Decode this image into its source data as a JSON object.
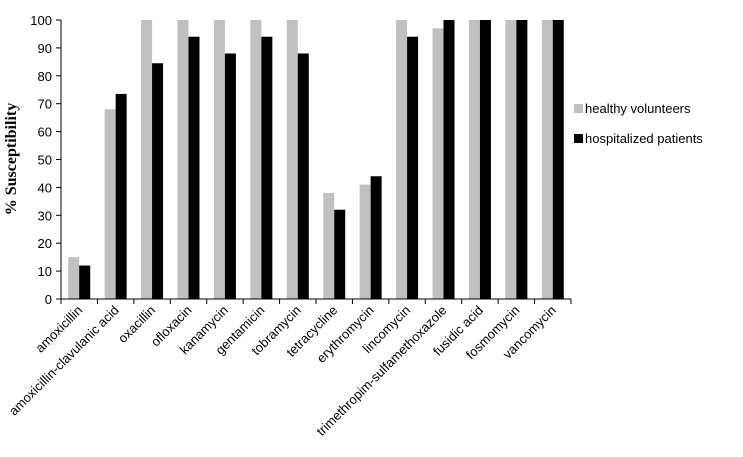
{
  "chart_data": {
    "type": "bar",
    "ylabel": "% Susceptibility",
    "xlabel": "",
    "title": "",
    "ylim": [
      0,
      100
    ],
    "yticks": [
      0,
      10,
      20,
      30,
      40,
      50,
      60,
      70,
      80,
      90,
      100
    ],
    "grid": false,
    "legend_position": "right",
    "categories": [
      "amoxicillin",
      "amoxicillin-clavulanic acid",
      "oxacillin",
      "ofloxacin",
      "kanamycin",
      "gentamicin",
      "tobramycin",
      "tetracycline",
      "erythromycin",
      "lincomycin",
      "trimethropim-sulfamethoxazole",
      "fusidic acid",
      "fosmomycin",
      "vancomycin"
    ],
    "series": [
      {
        "name": "healthy volunteers",
        "color": "#c0c0c0",
        "values": [
          15,
          68,
          100,
          100,
          100,
          100,
          100,
          38,
          41,
          100,
          97,
          100,
          100,
          100
        ]
      },
      {
        "name": "hospitalized patients",
        "color": "#000000",
        "values": [
          12,
          73.5,
          84.5,
          94,
          88,
          94,
          88,
          32,
          44,
          94,
          100,
          100,
          100,
          100
        ]
      }
    ]
  }
}
